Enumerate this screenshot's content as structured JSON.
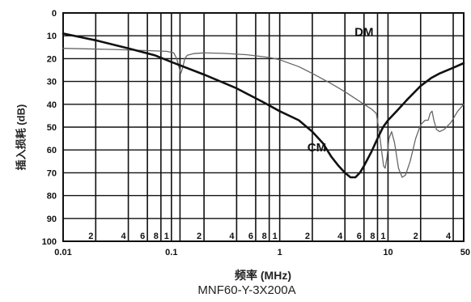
{
  "chart_data": {
    "type": "line",
    "title": "",
    "caption": "MNF60-Y-3X200A",
    "xlabel": "频率 (MHz)",
    "ylabel": "插入损耗 (dB)",
    "x_scale": "log",
    "xlim": [
      0.01,
      50
    ],
    "ylim": [
      0,
      100
    ],
    "y_inverted": true,
    "grid": true,
    "x_major_ticks": [
      {
        "value": 0.01,
        "label": "0.01"
      },
      {
        "value": 0.1,
        "label": "0.1"
      },
      {
        "value": 1,
        "label": "1"
      },
      {
        "value": 10,
        "label": "10"
      },
      {
        "value": 50,
        "label": "50"
      }
    ],
    "x_minor_labels": [
      {
        "value": 0.02,
        "label": "2"
      },
      {
        "value": 0.04,
        "label": "4"
      },
      {
        "value": 0.06,
        "label": "6"
      },
      {
        "value": 0.08,
        "label": "8"
      },
      {
        "value": 0.1,
        "label": "1"
      },
      {
        "value": 0.2,
        "label": "2"
      },
      {
        "value": 0.4,
        "label": "4"
      },
      {
        "value": 0.6,
        "label": "6"
      },
      {
        "value": 0.8,
        "label": "8"
      },
      {
        "value": 1,
        "label": "1"
      },
      {
        "value": 2,
        "label": "2"
      },
      {
        "value": 4,
        "label": "4"
      },
      {
        "value": 6,
        "label": "6"
      },
      {
        "value": 8,
        "label": "8"
      },
      {
        "value": 10,
        "label": "1"
      },
      {
        "value": 20,
        "label": "2"
      },
      {
        "value": 40,
        "label": "4"
      }
    ],
    "x_grid_values": [
      0.02,
      0.04,
      0.06,
      0.08,
      0.1,
      0.12,
      0.2,
      0.4,
      0.6,
      0.8,
      1,
      2,
      4,
      6,
      8,
      10,
      20,
      40
    ],
    "y_ticks": [
      0,
      10,
      20,
      30,
      40,
      50,
      60,
      70,
      80,
      90,
      100
    ],
    "series": [
      {
        "name": "DM",
        "color": "#666666",
        "stroke": "thin",
        "label_at": {
          "x": 6.0,
          "y": 8
        },
        "points": [
          [
            0.01,
            15.5
          ],
          [
            0.03,
            16
          ],
          [
            0.06,
            16.5
          ],
          [
            0.09,
            16.8
          ],
          [
            0.105,
            17.5
          ],
          [
            0.112,
            20
          ],
          [
            0.118,
            24
          ],
          [
            0.122,
            26.5
          ],
          [
            0.127,
            24
          ],
          [
            0.133,
            20
          ],
          [
            0.14,
            18.5
          ],
          [
            0.16,
            17.8
          ],
          [
            0.2,
            17.5
          ],
          [
            0.3,
            17.7
          ],
          [
            0.5,
            18.3
          ],
          [
            0.8,
            19.5
          ],
          [
            1.0,
            20.5
          ],
          [
            1.5,
            23.5
          ],
          [
            2.0,
            26.5
          ],
          [
            3.0,
            31
          ],
          [
            4.0,
            34.5
          ],
          [
            5.0,
            37.5
          ],
          [
            6.0,
            40
          ],
          [
            7.0,
            42
          ],
          [
            7.8,
            44
          ],
          [
            8.3,
            52
          ],
          [
            8.7,
            60
          ],
          [
            9.1,
            67
          ],
          [
            9.4,
            68
          ],
          [
            9.8,
            63
          ],
          [
            10.2,
            55
          ],
          [
            10.8,
            52
          ],
          [
            11.5,
            57
          ],
          [
            12.5,
            68
          ],
          [
            13.5,
            72
          ],
          [
            14.5,
            71
          ],
          [
            16,
            65
          ],
          [
            18,
            55
          ],
          [
            20,
            49
          ],
          [
            22,
            47
          ],
          [
            23.5,
            47
          ],
          [
            24.5,
            44
          ],
          [
            25.5,
            43
          ],
          [
            26.5,
            47
          ],
          [
            28,
            51
          ],
          [
            30,
            52
          ],
          [
            33,
            51
          ],
          [
            38,
            48
          ],
          [
            44,
            43
          ],
          [
            50,
            40
          ]
        ]
      },
      {
        "name": "CM",
        "color": "#111111",
        "stroke": "thick",
        "label_at": {
          "x": 2.2,
          "y": 58.5
        },
        "points": [
          [
            0.01,
            9
          ],
          [
            0.02,
            12
          ],
          [
            0.04,
            15.5
          ],
          [
            0.07,
            18.5
          ],
          [
            0.1,
            21.5
          ],
          [
            0.2,
            27
          ],
          [
            0.4,
            33
          ],
          [
            0.7,
            39
          ],
          [
            1.0,
            43
          ],
          [
            1.5,
            47
          ],
          [
            2.0,
            52
          ],
          [
            2.5,
            57
          ],
          [
            3.0,
            63
          ],
          [
            3.5,
            67
          ],
          [
            4.0,
            70
          ],
          [
            4.5,
            72
          ],
          [
            5.0,
            72
          ],
          [
            5.5,
            70
          ],
          [
            6.0,
            67
          ],
          [
            7.0,
            61
          ],
          [
            8.0,
            55
          ],
          [
            9.0,
            50
          ],
          [
            10,
            47
          ],
          [
            12,
            43
          ],
          [
            15,
            38
          ],
          [
            20,
            32
          ],
          [
            25,
            28.5
          ],
          [
            30,
            26.5
          ],
          [
            40,
            24
          ],
          [
            50,
            22
          ]
        ]
      }
    ]
  }
}
